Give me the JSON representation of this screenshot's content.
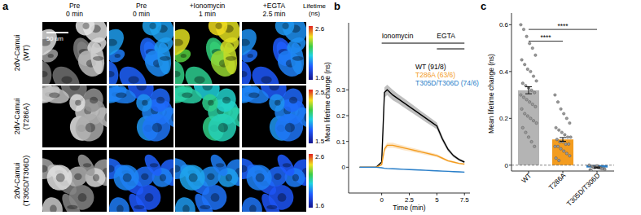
{
  "panel_labels": [
    "a",
    "b",
    "c"
  ],
  "image_panel": {
    "columns": [
      [
        "Pre",
        "0 min"
      ],
      [
        "Pre",
        "0 min"
      ],
      [
        "+Ionomycin",
        "1 min"
      ],
      [
        "+EGTA",
        "2.5 min"
      ]
    ],
    "rows": [
      [
        "2dV-Camui",
        "(WT)"
      ],
      [
        "2dV-Camui",
        "(T286A)"
      ],
      [
        "2dV-Camui",
        "(T305D/T306D)"
      ]
    ],
    "scale_bar": "50 um",
    "colorbar_title": [
      "Lifetime",
      "(ns)"
    ],
    "colorbars": [
      {
        "max": 2.6,
        "min": 1.6
      },
      {
        "max": 2.5,
        "min": 1.5
      },
      {
        "max": 2.6,
        "min": 1.6
      }
    ]
  },
  "chart_data": [
    {
      "type": "line",
      "x_label": "Time (min)",
      "y_label": "Mean lifetime change (ns)",
      "x": [
        -2,
        -1.5,
        -1,
        -0.5,
        0,
        0.25,
        0.5,
        1,
        1.5,
        2,
        2.5,
        3,
        3.5,
        4,
        4.5,
        5,
        5.5,
        6,
        6.5,
        7,
        7.5
      ],
      "series": [
        {
          "name": "WT (91/8)",
          "color": "#000000",
          "values": [
            0,
            0,
            0,
            0,
            0.02,
            0.29,
            0.3,
            0.28,
            0.265,
            0.25,
            0.235,
            0.22,
            0.205,
            0.19,
            0.175,
            0.16,
            0.11,
            0.07,
            0.045,
            0.03,
            0.02
          ],
          "errors": [
            0.002,
            0.002,
            0.002,
            0.002,
            0.005,
            0.02,
            0.02,
            0.02,
            0.018,
            0.018,
            0.017,
            0.016,
            0.015,
            0.015,
            0.014,
            0.013,
            0.01,
            0.008,
            0.006,
            0.005,
            0.004
          ]
        },
        {
          "name": "T286A (63/6)",
          "color": "#f39c1f",
          "values": [
            0,
            0,
            0,
            0,
            0.01,
            0.07,
            0.085,
            0.085,
            0.08,
            0.075,
            0.07,
            0.065,
            0.06,
            0.055,
            0.05,
            0.045,
            0.035,
            0.025,
            0.02,
            0.015,
            0.012
          ],
          "errors": [
            0.001,
            0.001,
            0.001,
            0.001,
            0.003,
            0.01,
            0.01,
            0.01,
            0.009,
            0.009,
            0.008,
            0.008,
            0.007,
            0.007,
            0.006,
            0.006,
            0.005,
            0.004,
            0.004,
            0.003,
            0.003
          ]
        },
        {
          "name": "T305D/T306D (74/6)",
          "color": "#2a7fc9",
          "values": [
            0,
            0,
            0,
            0,
            -0.002,
            -0.004,
            -0.005,
            -0.006,
            -0.007,
            -0.008,
            -0.009,
            -0.01,
            -0.011,
            -0.012,
            -0.013,
            -0.014,
            -0.015,
            -0.016,
            -0.017,
            -0.018,
            -0.019
          ],
          "errors": [
            0.001,
            0.001,
            0.001,
            0.001,
            0.001,
            0.002,
            0.002,
            0.002,
            0.002,
            0.002,
            0.002,
            0.002,
            0.002,
            0.002,
            0.002,
            0.002,
            0.002,
            0.002,
            0.002,
            0.002,
            0.002
          ]
        }
      ],
      "xlim": [
        -3,
        8
      ],
      "xticks": [
        0,
        2.5,
        5,
        7.5
      ],
      "ylim": [
        -0.1,
        0.56
      ],
      "yticks": [
        0,
        0.1,
        0.2,
        0.3
      ],
      "annotations": [
        {
          "text": "Ionomycin",
          "x": [
            0,
            7.5
          ]
        },
        {
          "text": "EGTA",
          "x": [
            5,
            7.5
          ]
        }
      ]
    },
    {
      "type": "bar",
      "y_label": "Mean lifetime change (ns)",
      "categories": [
        "WT",
        "T286A",
        "T305D/T306D"
      ],
      "values": [
        0.32,
        0.11,
        -0.01
      ],
      "errors": [
        0.015,
        0.008,
        0.002
      ],
      "colors": [
        "#b4b4b4",
        "#f39c1f",
        "#2a7fc9"
      ],
      "points": [
        [
          0.6,
          0.58,
          0.55,
          0.52,
          0.5,
          0.47,
          0.45,
          0.43,
          0.41,
          0.4,
          0.38,
          0.36,
          0.35,
          0.34,
          0.33,
          0.32,
          0.31,
          0.3,
          0.29,
          0.28,
          0.27,
          0.26,
          0.25,
          0.24,
          0.22,
          0.21,
          0.2,
          0.19,
          0.18,
          0.16,
          0.14,
          0.12,
          0.1,
          0.08
        ],
        [
          0.3,
          0.27,
          0.24,
          0.22,
          0.2,
          0.18,
          0.16,
          0.15,
          0.14,
          0.13,
          0.12,
          0.12,
          0.11,
          0.1,
          0.1,
          0.09,
          0.09,
          0.08,
          0.08,
          0.07,
          0.06,
          0.05,
          0.04,
          0.03,
          0.02
        ],
        [
          0,
          -0.005,
          -0.01,
          -0.01,
          -0.012,
          -0.015,
          -0.02,
          -0.008,
          -0.005,
          -0.01,
          -0.015,
          -0.018,
          -0.022,
          -0.01,
          -0.003,
          -0.012
        ]
      ],
      "ylim": [
        -0.025,
        0.65
      ],
      "yticks": [
        0,
        0.2,
        0.4,
        0.6
      ],
      "annotations": [
        {
          "text": "****",
          "from": 0,
          "to": 1,
          "y": 0.53
        },
        {
          "text": "****",
          "from": 0,
          "to": 2,
          "y": 0.58
        }
      ]
    }
  ]
}
